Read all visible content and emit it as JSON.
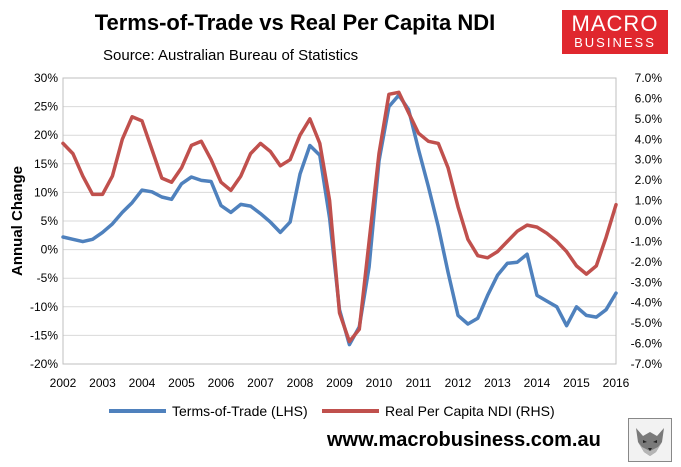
{
  "header": {
    "title": "Terms-of-Trade vs Real Per Capita NDI",
    "subtitle": "Source: Australian Bureau of Statistics",
    "logo_line1": "MACRO",
    "logo_line2": "BUSINESS"
  },
  "footer": {
    "website": "www.macrobusiness.com.au"
  },
  "colors": {
    "terms_of_trade": "#4f81bd",
    "ndi": "#c0504d",
    "grid": "#d9d9d9"
  },
  "chart_data": {
    "type": "line",
    "title": "Terms-of-Trade vs Real Per Capita NDI",
    "ylabel": "Annual Change",
    "xlabel": "",
    "x_ticks": [
      "2002",
      "2003",
      "2004",
      "2005",
      "2006",
      "2007",
      "2008",
      "2009",
      "2010",
      "2011",
      "2012",
      "2013",
      "2014",
      "2015",
      "2016"
    ],
    "xlim": [
      2002,
      2016
    ],
    "y_left": {
      "ylim": [
        -20,
        30
      ],
      "ticks": [
        "-20%",
        "-15%",
        "-10%",
        "-5%",
        "0%",
        "5%",
        "10%",
        "15%",
        "20%",
        "25%",
        "30%"
      ]
    },
    "y_right": {
      "ylim": [
        -7,
        7
      ],
      "ticks": [
        "-7.0%",
        "-6.0%",
        "-5.0%",
        "-4.0%",
        "-3.0%",
        "-2.0%",
        "-1.0%",
        "0.0%",
        "1.0%",
        "2.0%",
        "3.0%",
        "4.0%",
        "5.0%",
        "6.0%",
        "7.0%"
      ]
    },
    "legend_position": "bottom",
    "series": [
      {
        "name": "Terms-of-Trade (LHS)",
        "axis": "left",
        "x": [
          2002.0,
          2002.25,
          2002.5,
          2002.75,
          2003.0,
          2003.25,
          2003.5,
          2003.75,
          2004.0,
          2004.25,
          2004.5,
          2004.75,
          2005.0,
          2005.25,
          2005.5,
          2005.75,
          2006.0,
          2006.25,
          2006.5,
          2006.75,
          2007.0,
          2007.25,
          2007.5,
          2007.75,
          2008.0,
          2008.25,
          2008.5,
          2008.75,
          2009.0,
          2009.25,
          2009.5,
          2009.75,
          2010.0,
          2010.25,
          2010.5,
          2010.75,
          2011.0,
          2011.25,
          2011.5,
          2011.75,
          2012.0,
          2012.25,
          2012.5,
          2012.75,
          2013.0,
          2013.25,
          2013.5,
          2013.75,
          2014.0,
          2014.25,
          2014.5,
          2014.75,
          2015.0,
          2015.25,
          2015.5,
          2015.75,
          2016.0
        ],
        "values": [
          2.2,
          1.8,
          1.4,
          1.8,
          3.0,
          4.5,
          6.5,
          8.2,
          10.4,
          10.1,
          9.2,
          8.8,
          11.5,
          12.7,
          12.1,
          11.9,
          7.7,
          6.5,
          7.9,
          7.6,
          6.3,
          4.8,
          3.0,
          4.8,
          13.2,
          18.2,
          16.5,
          5.5,
          -10.5,
          -16.6,
          -13.5,
          -3.0,
          15.5,
          25.0,
          27.0,
          24.5,
          17.5,
          11.0,
          4.0,
          -4.0,
          -11.5,
          -13.0,
          -12.0,
          -8.0,
          -4.5,
          -2.4,
          -2.2,
          -0.8,
          -8.0,
          -9.0,
          -10.0,
          -13.3,
          -10.0,
          -11.5,
          -11.8,
          -10.5,
          -7.6
        ]
      },
      {
        "name": "Real Per Capita NDI (RHS)",
        "axis": "right",
        "x": [
          2002.0,
          2002.25,
          2002.5,
          2002.75,
          2003.0,
          2003.25,
          2003.5,
          2003.75,
          2004.0,
          2004.25,
          2004.5,
          2004.75,
          2005.0,
          2005.25,
          2005.5,
          2005.75,
          2006.0,
          2006.25,
          2006.5,
          2006.75,
          2007.0,
          2007.25,
          2007.5,
          2007.75,
          2008.0,
          2008.25,
          2008.5,
          2008.75,
          2009.0,
          2009.25,
          2009.5,
          2009.75,
          2010.0,
          2010.25,
          2010.5,
          2010.75,
          2011.0,
          2011.25,
          2011.5,
          2011.75,
          2012.0,
          2012.25,
          2012.5,
          2012.75,
          2013.0,
          2013.25,
          2013.5,
          2013.75,
          2014.0,
          2014.25,
          2014.5,
          2014.75,
          2015.0,
          2015.25,
          2015.5,
          2015.75,
          2016.0
        ],
        "values": [
          3.8,
          3.3,
          2.2,
          1.3,
          1.3,
          2.2,
          4.0,
          5.1,
          4.9,
          3.5,
          2.1,
          1.9,
          2.6,
          3.7,
          3.9,
          3.0,
          1.9,
          1.5,
          2.2,
          3.3,
          3.8,
          3.4,
          2.7,
          3.0,
          4.2,
          5.0,
          3.8,
          1.0,
          -4.5,
          -5.9,
          -5.3,
          -1.0,
          3.3,
          6.2,
          6.3,
          5.3,
          4.3,
          3.9,
          3.8,
          2.6,
          0.7,
          -0.9,
          -1.7,
          -1.8,
          -1.5,
          -1.0,
          -0.5,
          -0.2,
          -0.3,
          -0.6,
          -1.0,
          -1.5,
          -2.2,
          -2.6,
          -2.2,
          -0.8,
          0.8
        ]
      }
    ]
  }
}
